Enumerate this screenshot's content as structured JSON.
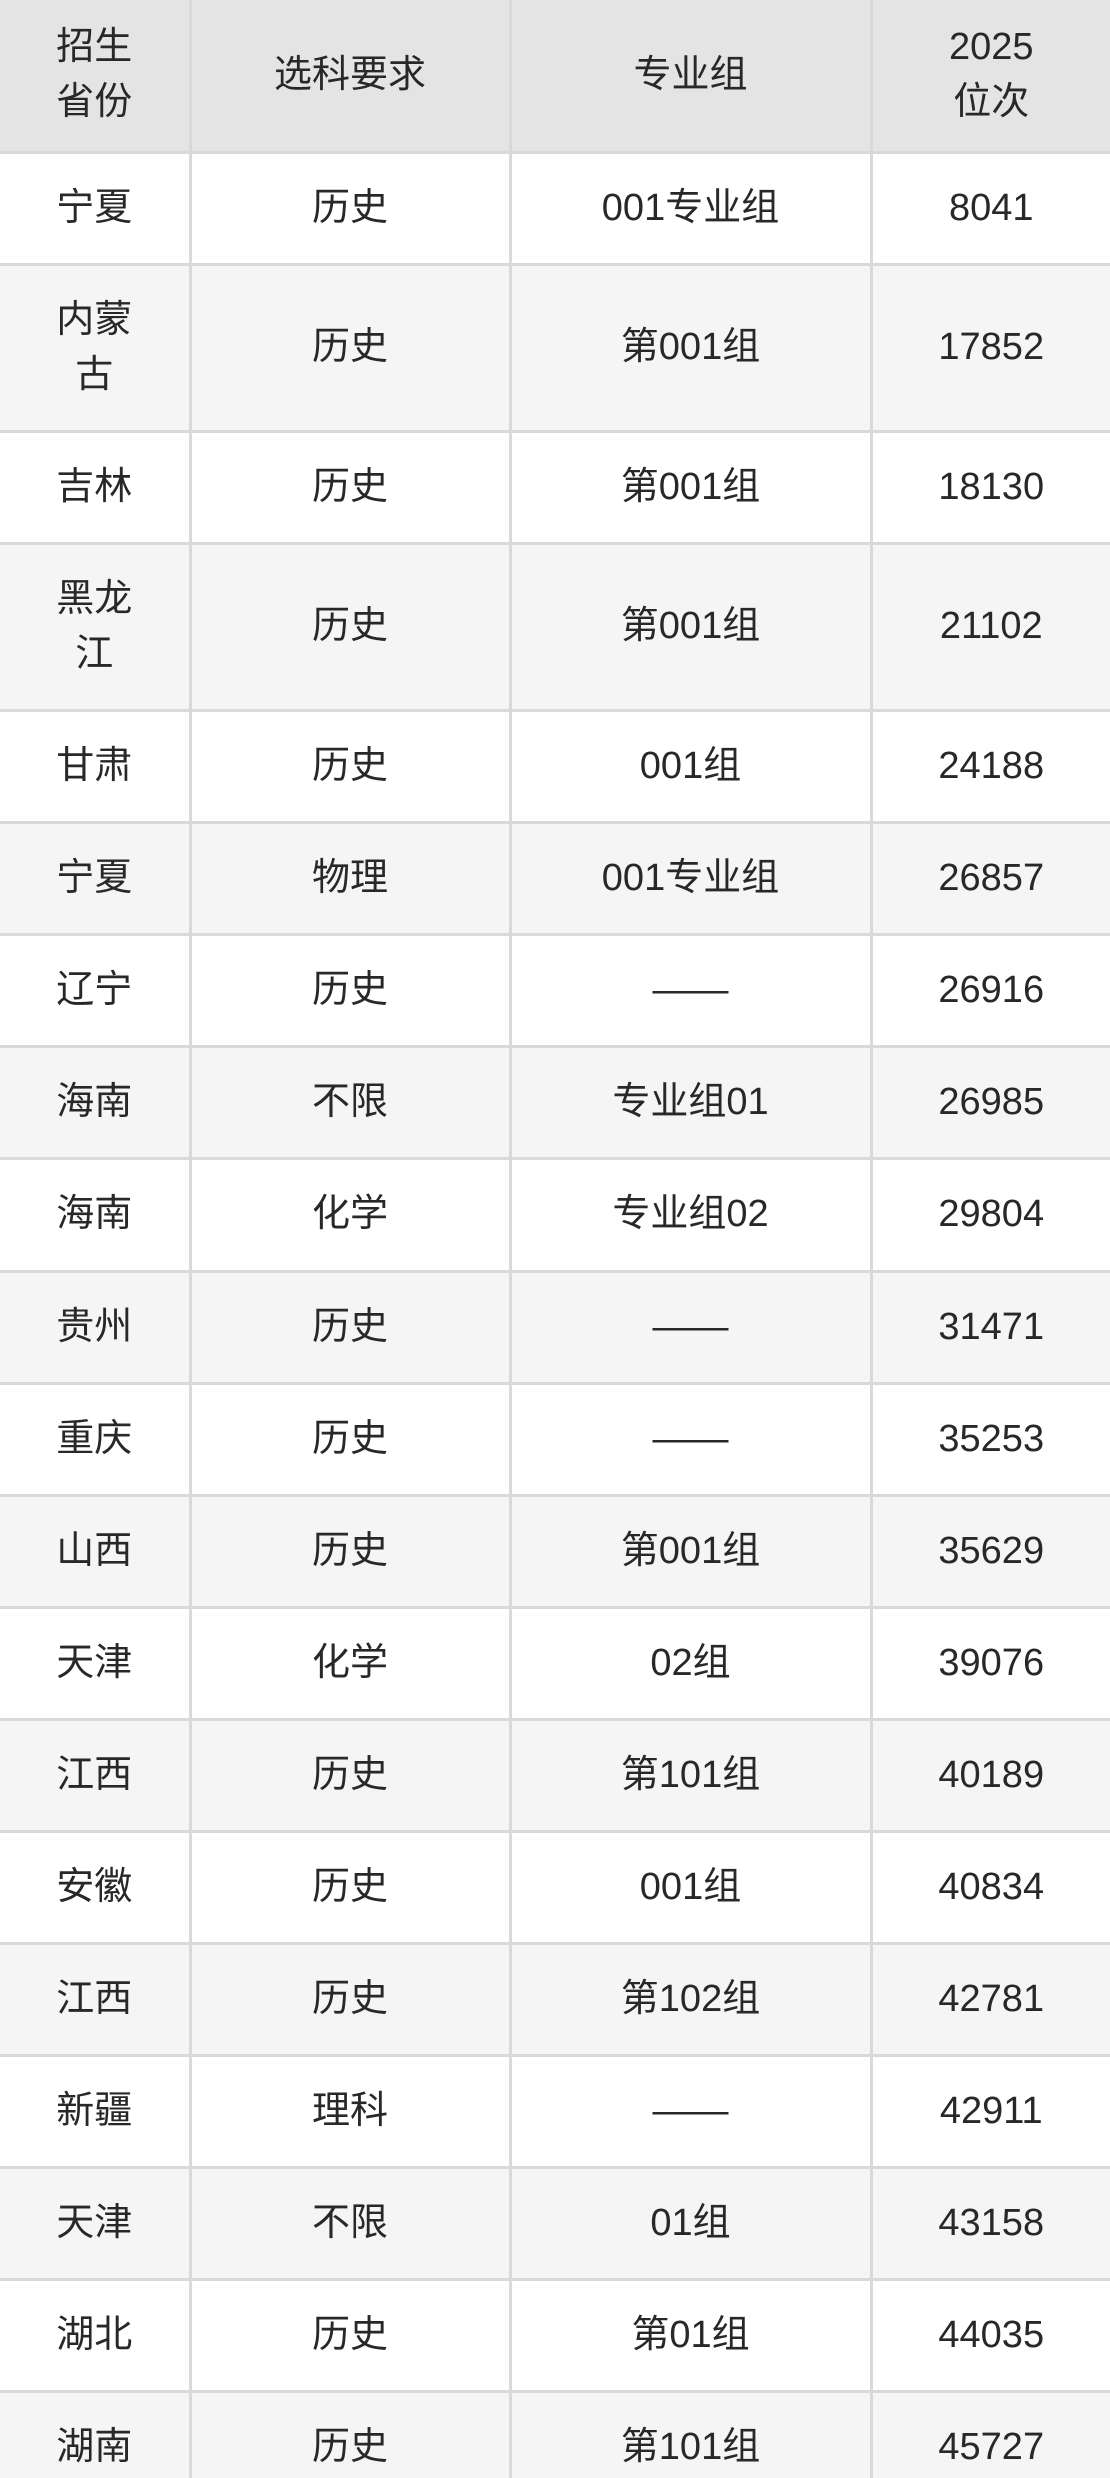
{
  "colors": {
    "header_bg": "#e4e4e4",
    "row_bg": "#ffffff",
    "row_alt_bg": "#f5f5f5",
    "border": "#d9d9d9",
    "text": "#282828"
  },
  "table": {
    "headers": [
      "招生\n省份",
      "选科要求",
      "专业组",
      "2025\n位次"
    ],
    "column_keys": [
      "province",
      "subject-requirement",
      "major-group",
      "rank-2025"
    ],
    "rows": [
      [
        "宁夏",
        "历史",
        "001专业组",
        "8041"
      ],
      [
        "内蒙古",
        "历史",
        "第001组",
        "17852"
      ],
      [
        "吉林",
        "历史",
        "第001组",
        "18130"
      ],
      [
        "黑龙江",
        "历史",
        "第001组",
        "21102"
      ],
      [
        "甘肃",
        "历史",
        "001组",
        "24188"
      ],
      [
        "宁夏",
        "物理",
        "001专业组",
        "26857"
      ],
      [
        "辽宁",
        "历史",
        "——",
        "26916"
      ],
      [
        "海南",
        "不限",
        "专业组01",
        "26985"
      ],
      [
        "海南",
        "化学",
        "专业组02",
        "29804"
      ],
      [
        "贵州",
        "历史",
        "——",
        "31471"
      ],
      [
        "重庆",
        "历史",
        "——",
        "35253"
      ],
      [
        "山西",
        "历史",
        "第001组",
        "35629"
      ],
      [
        "天津",
        "化学",
        "02组",
        "39076"
      ],
      [
        "江西",
        "历史",
        "第101组",
        "40189"
      ],
      [
        "安徽",
        "历史",
        "001组",
        "40834"
      ],
      [
        "江西",
        "历史",
        "第102组",
        "42781"
      ],
      [
        "新疆",
        "理科",
        "——",
        "42911"
      ],
      [
        "天津",
        "不限",
        "01组",
        "43158"
      ],
      [
        "湖北",
        "历史",
        "第01组",
        "44035"
      ],
      [
        "湖南",
        "历史",
        "第101组",
        "45727"
      ]
    ]
  }
}
